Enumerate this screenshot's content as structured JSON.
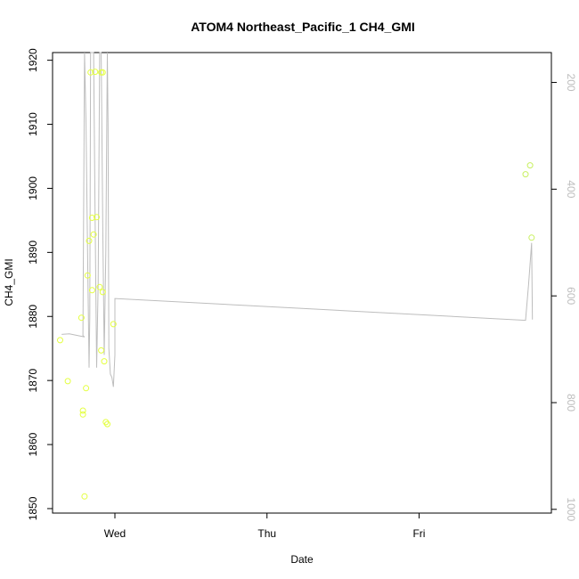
{
  "chart_data": {
    "type": "scatter",
    "title": "ATOM4 Northeast_Pacific_1 CH4_GMI",
    "xlabel": "Date",
    "ylabel": "CH4_GMI",
    "x_tick_labels": [
      "Wed",
      "Thu",
      "Fri"
    ],
    "xlim": [
      -0.41,
      2.87
    ],
    "ylim": [
      1849.3,
      1921.2
    ],
    "y_ticks": [
      1850,
      1860,
      1870,
      1880,
      1890,
      1900,
      1910,
      1920
    ],
    "y2_ticks": [
      200,
      400,
      600,
      800,
      1000
    ],
    "y2lim": [
      1007,
      144
    ],
    "grid": false,
    "series": [
      {
        "type": "line",
        "color": "#bdbdbd",
        "points": [
          [
            -0.35,
            1877.2
          ],
          [
            -0.3,
            1877.3
          ],
          [
            -0.2,
            1876.8
          ],
          [
            -0.21,
            1877.0
          ],
          [
            -0.2,
            1921.2
          ],
          [
            -0.19,
            1910.0
          ],
          [
            -0.18,
            1890.0
          ],
          [
            -0.17,
            1872.0
          ],
          [
            -0.165,
            1880.0
          ],
          [
            -0.16,
            1921.2
          ],
          [
            -0.14,
            1921.2
          ],
          [
            -0.13,
            1895.0
          ],
          [
            -0.12,
            1872.0
          ],
          [
            -0.11,
            1885.0
          ],
          [
            -0.1,
            1921.2
          ],
          [
            -0.09,
            1921.2
          ],
          [
            -0.08,
            1895.0
          ],
          [
            -0.07,
            1874.0
          ],
          [
            -0.06,
            1890.0
          ],
          [
            -0.05,
            1921.2
          ],
          [
            -0.045,
            1910.0
          ],
          [
            -0.04,
            1875.0
          ],
          [
            -0.03,
            1871.0
          ],
          [
            -0.02,
            1870.5
          ],
          [
            -0.01,
            1869.0
          ],
          [
            0.0,
            1874.0
          ],
          [
            0.0,
            1882.8
          ],
          [
            2.7,
            1879.4
          ],
          [
            2.72,
            1885.0
          ],
          [
            2.74,
            1891.5
          ],
          [
            2.745,
            1879.5
          ]
        ]
      },
      {
        "type": "scatter",
        "colors": [
          "#c8f060",
          "#e4ff40"
        ],
        "points": [
          [
            -0.36,
            1876.3
          ],
          [
            -0.31,
            1869.9
          ],
          [
            -0.22,
            1879.8
          ],
          [
            -0.21,
            1865.3
          ],
          [
            -0.21,
            1864.7
          ],
          [
            -0.2,
            1851.9
          ],
          [
            -0.19,
            1868.8
          ],
          [
            -0.18,
            1886.4
          ],
          [
            -0.17,
            1891.8
          ],
          [
            -0.16,
            1918.1
          ],
          [
            -0.15,
            1895.4
          ],
          [
            -0.15,
            1884.1
          ],
          [
            -0.14,
            1892.8
          ],
          [
            -0.13,
            1918.2
          ],
          [
            -0.12,
            1895.5
          ],
          [
            -0.1,
            1884.6
          ],
          [
            -0.09,
            1918.1
          ],
          [
            -0.09,
            1874.7
          ],
          [
            -0.08,
            1918.1
          ],
          [
            -0.08,
            1883.8
          ],
          [
            -0.07,
            1873.0
          ],
          [
            -0.06,
            1863.5
          ],
          [
            -0.05,
            1863.2
          ],
          [
            -0.01,
            1878.8
          ],
          [
            2.7,
            1902.2
          ],
          [
            2.73,
            1903.6
          ],
          [
            2.74,
            1892.3
          ]
        ]
      }
    ]
  }
}
